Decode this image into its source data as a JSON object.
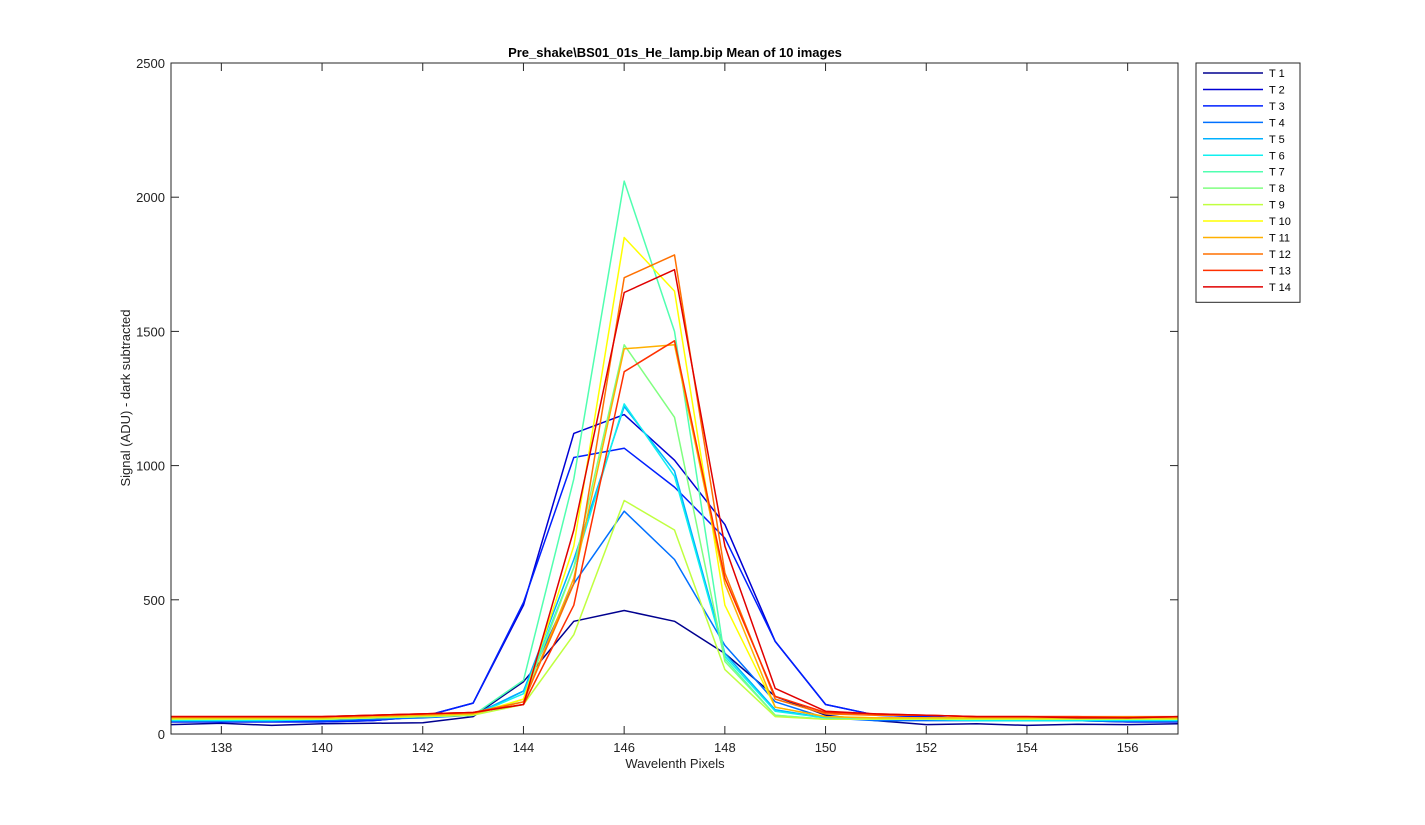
{
  "chart_data": {
    "type": "line",
    "title": "Pre_shake\\BS01_01s_He_lamp.bip  Mean of 10 images",
    "xlabel": "Wavelenth Pixels",
    "ylabel": "Signal (ADU) - dark subtracted",
    "xlim": [
      137,
      157
    ],
    "ylim": [
      0,
      2500
    ],
    "xticks": [
      138,
      140,
      142,
      144,
      146,
      148,
      150,
      152,
      154,
      156
    ],
    "yticks": [
      0,
      500,
      1000,
      1500,
      2000,
      2500
    ],
    "grid": false,
    "legend_position": "outside-top-right",
    "x": [
      137,
      138,
      139,
      140,
      141,
      142,
      143,
      144,
      145,
      146,
      147,
      148,
      149,
      150,
      151,
      152,
      153,
      154,
      155,
      156,
      157
    ],
    "series": [
      {
        "name": "T 1",
        "color": "#00008f",
        "values": [
          35,
          40,
          32,
          38,
          40,
          42,
          65,
          195,
          420,
          460,
          420,
          300,
          140,
          70,
          50,
          35,
          38,
          32,
          36,
          35,
          38
        ]
      },
      {
        "name": "T 2",
        "color": "#0000d4",
        "values": [
          45,
          45,
          45,
          45,
          50,
          65,
          115,
          480,
          1120,
          1190,
          1020,
          780,
          345,
          110,
          70,
          65,
          55,
          55,
          50,
          45,
          45
        ]
      },
      {
        "name": "T 3",
        "color": "#0020ff",
        "values": [
          45,
          45,
          45,
          45,
          50,
          65,
          115,
          490,
          1030,
          1065,
          920,
          730,
          345,
          110,
          70,
          65,
          55,
          55,
          50,
          45,
          45
        ]
      },
      {
        "name": "T 4",
        "color": "#0070ff",
        "values": [
          50,
          50,
          50,
          50,
          55,
          60,
          70,
          160,
          560,
          830,
          650,
          330,
          120,
          60,
          50,
          50,
          50,
          50,
          50,
          50,
          50
        ]
      },
      {
        "name": "T 5",
        "color": "#00b0ff",
        "values": [
          50,
          50,
          50,
          55,
          60,
          65,
          70,
          160,
          650,
          1220,
          980,
          300,
          90,
          60,
          55,
          55,
          50,
          50,
          50,
          50,
          50
        ]
      },
      {
        "name": "T 6",
        "color": "#10f0f0",
        "values": [
          50,
          50,
          50,
          55,
          60,
          65,
          70,
          150,
          620,
          1230,
          960,
          290,
          85,
          60,
          55,
          55,
          50,
          50,
          50,
          50,
          50
        ]
      },
      {
        "name": "T 7",
        "color": "#50ffb0",
        "values": [
          55,
          55,
          55,
          55,
          60,
          65,
          70,
          200,
          950,
          2060,
          1500,
          280,
          70,
          55,
          55,
          55,
          55,
          55,
          55,
          55,
          55
        ]
      },
      {
        "name": "T 8",
        "color": "#80ff80",
        "values": [
          55,
          55,
          55,
          55,
          60,
          65,
          70,
          130,
          620,
          1450,
          1180,
          270,
          70,
          55,
          55,
          55,
          55,
          55,
          55,
          55,
          55
        ]
      },
      {
        "name": "T 9",
        "color": "#c0ff40",
        "values": [
          55,
          55,
          55,
          55,
          60,
          65,
          70,
          110,
          370,
          870,
          760,
          240,
          65,
          55,
          55,
          55,
          55,
          55,
          55,
          55,
          55
        ]
      },
      {
        "name": "T 10",
        "color": "#ffff00",
        "values": [
          60,
          60,
          60,
          60,
          65,
          70,
          75,
          130,
          700,
          1850,
          1650,
          480,
          100,
          65,
          60,
          60,
          60,
          60,
          60,
          60,
          60
        ]
      },
      {
        "name": "T 11",
        "color": "#ffb000",
        "values": [
          60,
          60,
          60,
          60,
          65,
          70,
          75,
          120,
          580,
          1435,
          1450,
          560,
          100,
          65,
          60,
          60,
          60,
          60,
          60,
          60,
          60
        ]
      },
      {
        "name": "T 12",
        "color": "#ff7000",
        "values": [
          65,
          65,
          65,
          65,
          70,
          75,
          80,
          120,
          560,
          1700,
          1785,
          600,
          130,
          75,
          70,
          70,
          65,
          65,
          65,
          65,
          65
        ]
      },
      {
        "name": "T 13",
        "color": "#ff3000",
        "values": [
          65,
          65,
          65,
          65,
          70,
          75,
          80,
          110,
          480,
          1350,
          1465,
          580,
          140,
          80,
          75,
          70,
          65,
          65,
          65,
          60,
          65
        ]
      },
      {
        "name": "T 14",
        "color": "#e00000",
        "values": [
          65,
          65,
          65,
          65,
          70,
          75,
          80,
          110,
          760,
          1645,
          1730,
          700,
          170,
          85,
          75,
          70,
          65,
          65,
          60,
          60,
          65
        ]
      }
    ]
  }
}
